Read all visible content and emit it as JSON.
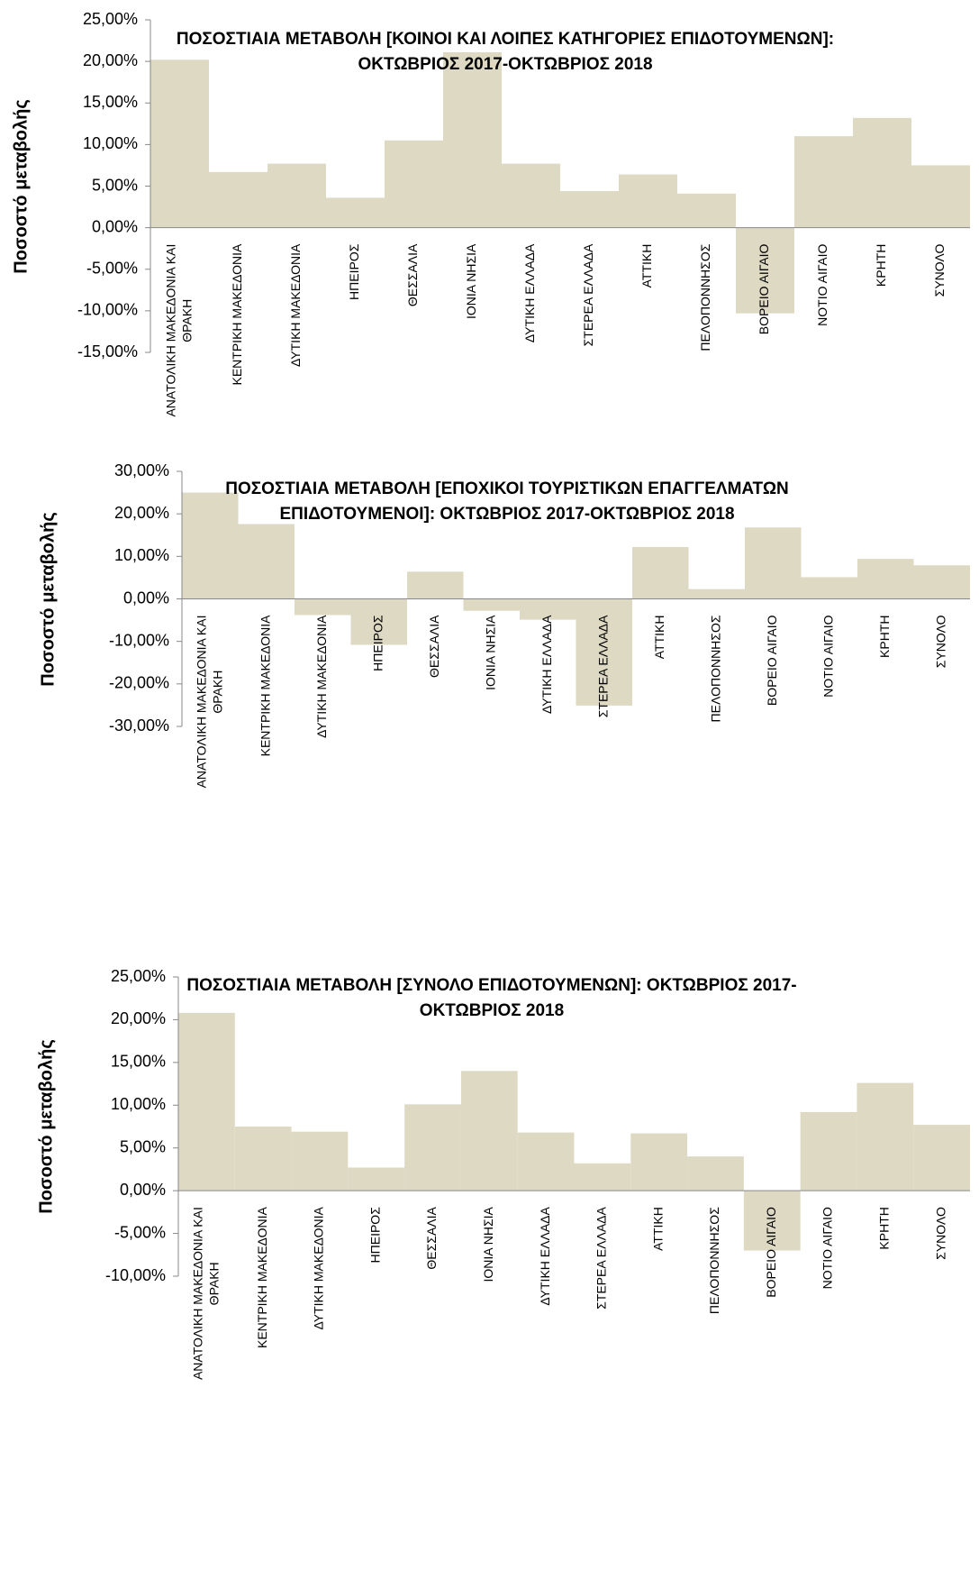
{
  "chart_data": [
    {
      "type": "bar",
      "title": [
        "ΠΟΣΟΣΤΙΑΙΑ ΜΕΤΑΒΟΛΗ [ΚΟΙΝΟΙ ΚΑΙ ΛΟΙΠΕΣ ΚΑΤΗΓΟΡΙΕΣ ΕΠΙΔΟΤΟΥΜΕΝΩΝ]:",
        "ΟΚΤΩΒΡΙΟΣ 2017-ΟΚΤΩΒΡΙΟΣ  2018"
      ],
      "y_label": "Ποσοστό μεταβολής",
      "color": "#ddd9c3",
      "categories": [
        "ΑΝΑΤΟΛΙΚΗ ΜΑΚΕΔΟΝΙΑ ΚΑΙ ΘΡΑΚΗ",
        "ΚΕΝΤΡΙΚΗ ΜΑΚΕΔΟΝΙΑ",
        "ΔΥΤΙΚΗ ΜΑΚΕΔΟΝΙΑ",
        "ΗΠΕΙΡΟΣ",
        "ΘΕΣΣΑΛΙΑ",
        "ΙΟΝΙΑ ΝΗΣΙΑ",
        "ΔΥΤΙΚΗ ΕΛΛΑΔΑ",
        "ΣΤΕΡΕΑ ΕΛΛΑΔΑ",
        "ΑΤΤΙΚΗ",
        "ΠΕΛΟΠΟΝΝΗΣΟΣ",
        "ΒΟΡΕΙΟ ΑΙΓΑΙΟ",
        "ΝΟΤΙΟ ΑΙΓΑΙΟ",
        "ΚΡΗΤΗ",
        "ΣΥΝΟΛΟ"
      ],
      "values": [
        20.2,
        6.7,
        7.7,
        3.6,
        10.5,
        21.1,
        7.7,
        4.4,
        6.4,
        4.1,
        -10.3,
        11.0,
        13.2,
        7.5
      ],
      "ylim": [
        -15,
        25
      ],
      "yticks": [
        {
          "value": -15,
          "label": "-15,00%"
        },
        {
          "value": -10,
          "label": "-10,00%"
        },
        {
          "value": -5,
          "label": "-5,00%"
        },
        {
          "value": 0,
          "label": "0,00%"
        },
        {
          "value": 5,
          "label": "5,00%"
        },
        {
          "value": 10,
          "label": "10,00%"
        },
        {
          "value": 15,
          "label": "15,00%"
        },
        {
          "value": 20,
          "label": "20,00%"
        },
        {
          "value": 25,
          "label": "25,00%"
        }
      ]
    },
    {
      "type": "bar",
      "title": [
        "ΠΟΣΟΣΤΙΑΙΑ ΜΕΤΑΒΟΛΗ [ΕΠΟΧΙΚΟΙ ΤΟΥΡΙΣΤΙΚΩΝ ΕΠΑΓΓΕΛΜΑΤΩΝ",
        "ΕΠΙΔΟΤΟΥΜΕΝΟΙ]: ΟΚΤΩΒΡΙΟΣ  2017-ΟΚΤΩΒΡΙΟΣ  2018"
      ],
      "y_label": "Ποσοστό μεταβολής",
      "color": "#ddd9c3",
      "categories": [
        "ΑΝΑΤΟΛΙΚΗ ΜΑΚΕΔΟΝΙΑ ΚΑΙ ΘΡΑΚΗ",
        "ΚΕΝΤΡΙΚΗ ΜΑΚΕΔΟΝΙΑ",
        "ΔΥΤΙΚΗ ΜΑΚΕΔΟΝΙΑ",
        "ΗΠΕΙΡΟΣ",
        "ΘΕΣΣΑΛΙΑ",
        "ΙΟΝΙΑ ΝΗΣΙΑ",
        "ΔΥΤΙΚΗ ΕΛΛΑΔΑ",
        "ΣΤΕΡΕΑ ΕΛΛΑΔΑ",
        "ΑΤΤΙΚΗ",
        "ΠΕΛΟΠΟΝΝΗΣΟΣ",
        "ΒΟΡΕΙΟ ΑΙΓΑΙΟ",
        "ΝΟΤΙΟ ΑΙΓΑΙΟ",
        "ΚΡΗΤΗ",
        "ΣΥΝΟΛΟ"
      ],
      "values": [
        25.0,
        17.6,
        -3.8,
        -10.8,
        6.4,
        -2.8,
        -4.9,
        -25.1,
        12.2,
        2.3,
        16.8,
        5.1,
        9.4,
        7.9
      ],
      "ylim": [
        -30,
        30
      ],
      "yticks": [
        {
          "value": -30,
          "label": "-30,00%"
        },
        {
          "value": -20,
          "label": "-20,00%"
        },
        {
          "value": -10,
          "label": "-10,00%"
        },
        {
          "value": 0,
          "label": "0,00%"
        },
        {
          "value": 10,
          "label": "10,00%"
        },
        {
          "value": 20,
          "label": "20,00%"
        },
        {
          "value": 30,
          "label": "30,00%"
        }
      ]
    },
    {
      "type": "bar",
      "title": [
        "ΠΟΣΟΣΤΙΑΙΑ ΜΕΤΑΒΟΛΗ [ΣΥΝΟΛΟ ΕΠΙΔΟΤΟΥΜΕΝΩΝ]:  ΟΚΤΩΒΡΙΟΣ 2017-",
        "ΟΚΤΩΒΡΙΟΣ 2018"
      ],
      "y_label": "Ποσοστό μεταβολής",
      "color": "#ddd9c3",
      "categories": [
        "ΑΝΑΤΟΛΙΚΗ ΜΑΚΕΔΟΝΙΑ ΚΑΙ ΘΡΑΚΗ",
        "ΚΕΝΤΡΙΚΗ ΜΑΚΕΔΟΝΙΑ",
        "ΔΥΤΙΚΗ ΜΑΚΕΔΟΝΙΑ",
        "ΗΠΕΙΡΟΣ",
        "ΘΕΣΣΑΛΙΑ",
        "ΙΟΝΙΑ ΝΗΣΙΑ",
        "ΔΥΤΙΚΗ ΕΛΛΑΔΑ",
        "ΣΤΕΡΕΑ ΕΛΛΑΔΑ",
        "ΑΤΤΙΚΗ",
        "ΠΕΛΟΠΟΝΝΗΣΟΣ",
        "ΒΟΡΕΙΟ ΑΙΓΑΙΟ",
        "ΝΟΤΙΟ ΑΙΓΑΙΟ",
        "ΚΡΗΤΗ",
        "ΣΥΝΟΛΟ"
      ],
      "values": [
        20.8,
        7.5,
        6.9,
        2.7,
        10.1,
        14.0,
        6.8,
        3.2,
        6.7,
        4.0,
        -7.0,
        9.2,
        12.6,
        7.7
      ],
      "ylim": [
        -10,
        25
      ],
      "yticks": [
        {
          "value": -10,
          "label": "-10,00%"
        },
        {
          "value": -5,
          "label": "-5,00%"
        },
        {
          "value": 0,
          "label": "0,00%"
        },
        {
          "value": 5,
          "label": "5,00%"
        },
        {
          "value": 10,
          "label": "10,00%"
        },
        {
          "value": 15,
          "label": "15,00%"
        },
        {
          "value": 20,
          "label": "20,00%"
        },
        {
          "value": 25,
          "label": "25,00%"
        }
      ]
    }
  ]
}
